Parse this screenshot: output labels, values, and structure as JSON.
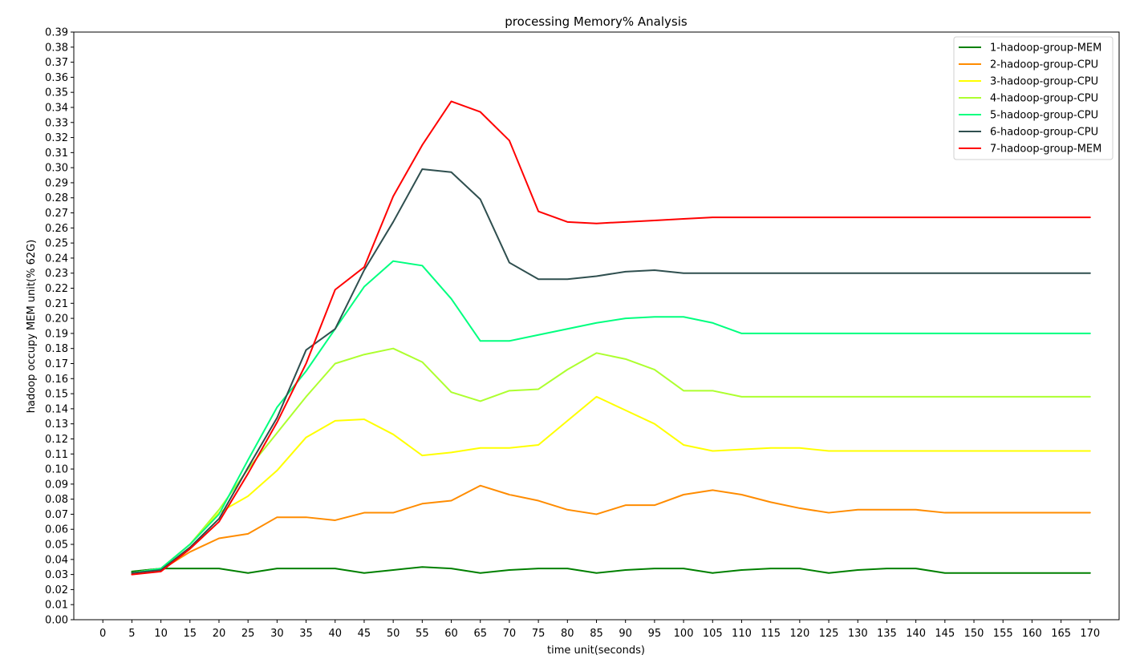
{
  "chart_data": {
    "type": "line",
    "title": "processing Memory% Analysis",
    "xlabel": "time unit(seconds)",
    "ylabel": "hadoop occupy MEM unit(% 62G)",
    "xlim": [
      -5,
      175
    ],
    "ylim": [
      0,
      0.39
    ],
    "xticks": [
      0,
      5,
      10,
      15,
      20,
      25,
      30,
      35,
      40,
      45,
      50,
      55,
      60,
      65,
      70,
      75,
      80,
      85,
      90,
      95,
      100,
      105,
      110,
      115,
      120,
      125,
      130,
      135,
      140,
      145,
      150,
      155,
      160,
      165,
      170
    ],
    "yticks": [
      0,
      0.01,
      0.02,
      0.03,
      0.04,
      0.05,
      0.06,
      0.07,
      0.08,
      0.09,
      0.1,
      0.11,
      0.12,
      0.13,
      0.14,
      0.15,
      0.16,
      0.17,
      0.18,
      0.19,
      0.2,
      0.21,
      0.22,
      0.23,
      0.24,
      0.25,
      0.26,
      0.27,
      0.28,
      0.29,
      0.3,
      0.31,
      0.32,
      0.33,
      0.34,
      0.35,
      0.36,
      0.37,
      0.38,
      0.39
    ],
    "grid": false,
    "legend_position": "top-right",
    "x": [
      5,
      10,
      15,
      20,
      25,
      30,
      35,
      40,
      45,
      50,
      55,
      60,
      65,
      70,
      75,
      80,
      85,
      90,
      95,
      100,
      105,
      110,
      115,
      120,
      125,
      130,
      135,
      140,
      145,
      150,
      155,
      160,
      165,
      170
    ],
    "series": [
      {
        "name": "1-hadoop-group-MEM",
        "color": "#008000",
        "values": [
          0.032,
          0.034,
          0.034,
          0.034,
          0.031,
          0.034,
          0.034,
          0.034,
          0.031,
          0.033,
          0.035,
          0.034,
          0.031,
          0.033,
          0.034,
          0.034,
          0.031,
          0.033,
          0.034,
          0.034,
          0.031,
          0.033,
          0.034,
          0.034,
          0.031,
          0.033,
          0.034,
          0.034,
          0.031,
          0.031,
          0.031,
          0.031,
          0.031,
          0.031
        ]
      },
      {
        "name": "2-hadoop-group-CPU",
        "color": "#ff8c00",
        "values": [
          0.031,
          0.033,
          0.045,
          0.054,
          0.057,
          0.068,
          0.068,
          0.066,
          0.071,
          0.071,
          0.077,
          0.079,
          0.089,
          0.083,
          0.079,
          0.073,
          0.07,
          0.076,
          0.076,
          0.083,
          0.086,
          0.083,
          0.078,
          0.074,
          0.071,
          0.073,
          0.073,
          0.073,
          0.071,
          0.071,
          0.071,
          0.071,
          0.071,
          0.071
        ]
      },
      {
        "name": "3-hadoop-group-CPU",
        "color": "#ffff00",
        "values": [
          0.031,
          0.034,
          0.05,
          0.071,
          0.082,
          0.099,
          0.121,
          0.132,
          0.133,
          0.123,
          0.109,
          0.111,
          0.114,
          0.114,
          0.116,
          0.132,
          0.148,
          0.139,
          0.13,
          0.116,
          0.112,
          0.113,
          0.114,
          0.114,
          0.112,
          0.112,
          0.112,
          0.112,
          0.112,
          0.112,
          0.112,
          0.112,
          0.112,
          0.112
        ]
      },
      {
        "name": "4-hadoop-group-CPU",
        "color": "#adff2f",
        "values": [
          0.031,
          0.034,
          0.05,
          0.073,
          0.1,
          0.124,
          0.148,
          0.17,
          0.176,
          0.18,
          0.171,
          0.151,
          0.145,
          0.152,
          0.153,
          0.166,
          0.177,
          0.173,
          0.166,
          0.152,
          0.152,
          0.148,
          0.148,
          0.148,
          0.148,
          0.148,
          0.148,
          0.148,
          0.148,
          0.148,
          0.148,
          0.148,
          0.148,
          0.148
        ]
      },
      {
        "name": "5-hadoop-group-CPU",
        "color": "#00ff7f",
        "values": [
          0.031,
          0.034,
          0.05,
          0.07,
          0.106,
          0.141,
          0.165,
          0.193,
          0.221,
          0.238,
          0.235,
          0.213,
          0.185,
          0.185,
          0.189,
          0.193,
          0.197,
          0.2,
          0.201,
          0.201,
          0.197,
          0.19,
          0.19,
          0.19,
          0.19,
          0.19,
          0.19,
          0.19,
          0.19,
          0.19,
          0.19,
          0.19,
          0.19,
          0.19
        ]
      },
      {
        "name": "6-hadoop-group-CPU",
        "color": "#2f4f4f",
        "values": [
          0.031,
          0.033,
          0.048,
          0.067,
          0.101,
          0.134,
          0.179,
          0.193,
          0.232,
          0.264,
          0.299,
          0.297,
          0.279,
          0.237,
          0.226,
          0.226,
          0.228,
          0.231,
          0.232,
          0.23,
          0.23,
          0.23,
          0.23,
          0.23,
          0.23,
          0.23,
          0.23,
          0.23,
          0.23,
          0.23,
          0.23,
          0.23,
          0.23,
          0.23
        ]
      },
      {
        "name": "7-hadoop-group-MEM",
        "color": "#ff0000",
        "values": [
          0.03,
          0.032,
          0.047,
          0.065,
          0.097,
          0.131,
          0.17,
          0.219,
          0.234,
          0.281,
          0.315,
          0.344,
          0.337,
          0.318,
          0.271,
          0.264,
          0.263,
          0.264,
          0.265,
          0.266,
          0.267,
          0.267,
          0.267,
          0.267,
          0.267,
          0.267,
          0.267,
          0.267,
          0.267,
          0.267,
          0.267,
          0.267,
          0.267,
          0.267
        ]
      }
    ]
  }
}
